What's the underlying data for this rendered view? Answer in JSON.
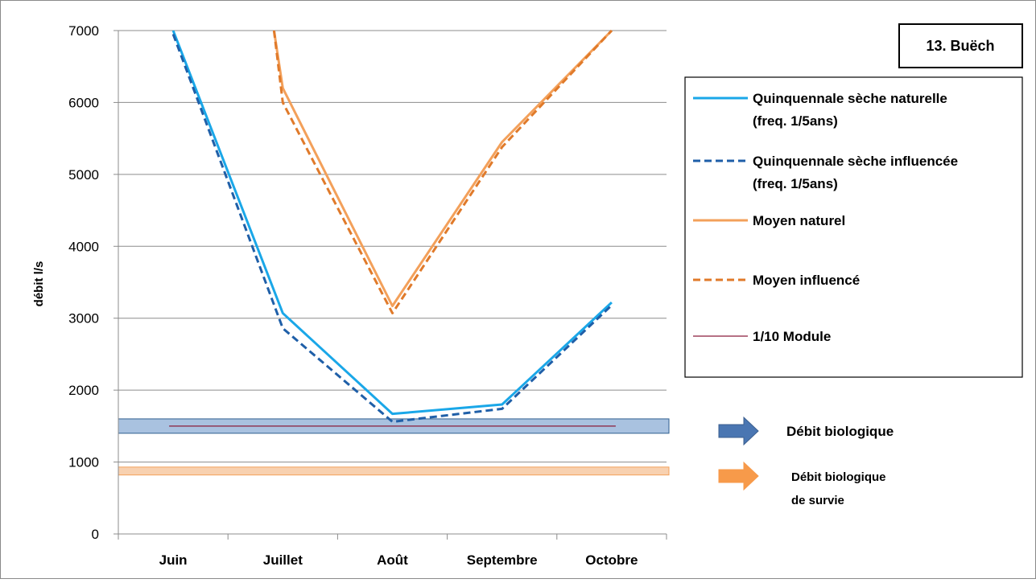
{
  "chart_data": {
    "type": "line",
    "title": "13. Buëch",
    "xlabel": "",
    "ylabel": "débit l/s",
    "categories": [
      "Juin",
      "Juillet",
      "Août",
      "Septembre",
      "Octobre"
    ],
    "ylim": [
      0,
      7000
    ],
    "yticks": [
      0,
      1000,
      2000,
      3000,
      4000,
      5000,
      6000,
      7000
    ],
    "grid": true,
    "legend_position": "right",
    "series": [
      {
        "name": "Quinquennale sèche naturelle (freq. 1/5ans)",
        "legend_lines": [
          "Quinquennale sèche naturelle",
          "(freq. 1/5ans)"
        ],
        "values": [
          7000,
          3070,
          1670,
          1800,
          3220
        ],
        "color": "#1aa7e8",
        "dash": false
      },
      {
        "name": "Quinquennale sèche influencée (freq. 1/5ans)",
        "legend_lines": [
          "Quinquennale sèche influencée",
          "(freq. 1/5ans)"
        ],
        "values": [
          6950,
          2860,
          1560,
          1740,
          3180
        ],
        "color": "#1f5fa8",
        "dash": true
      },
      {
        "name": "Moyen naturel",
        "legend_lines": [
          "Moyen naturel"
        ],
        "values": [
          null,
          6200,
          3170,
          5450,
          7000
        ],
        "color": "#f3a05a",
        "dash": false,
        "start": {
          "index": 0.92,
          "value": 7000
        }
      },
      {
        "name": "Moyen influencé",
        "legend_lines": [
          "Moyen influencé"
        ],
        "values": [
          null,
          6000,
          3070,
          5380,
          7000
        ],
        "color": "#e07a2a",
        "dash": true,
        "start": {
          "index": 0.92,
          "value": 7000
        }
      },
      {
        "name": "1/10 Module",
        "legend_lines": [
          "1/10 Module"
        ],
        "values": [
          1500,
          1500,
          1500,
          1500,
          1500
        ],
        "color": "#8b1c3a",
        "dash": false,
        "thin": true
      }
    ],
    "bands": [
      {
        "name": "Débit biologique",
        "legend_lines": [
          "Débit biologique"
        ],
        "min": 1400,
        "max": 1600,
        "fill": "#a9c2e0",
        "stroke": "#2f5f8f",
        "arrow": "#4a76b2"
      },
      {
        "name": "Débit biologique de survie",
        "legend_lines": [
          "Débit biologique",
          "de survie"
        ],
        "min": 820,
        "max": 930,
        "fill": "#f8d1b0",
        "stroke": "#f3a05a",
        "arrow": "#f79a4a"
      }
    ]
  }
}
